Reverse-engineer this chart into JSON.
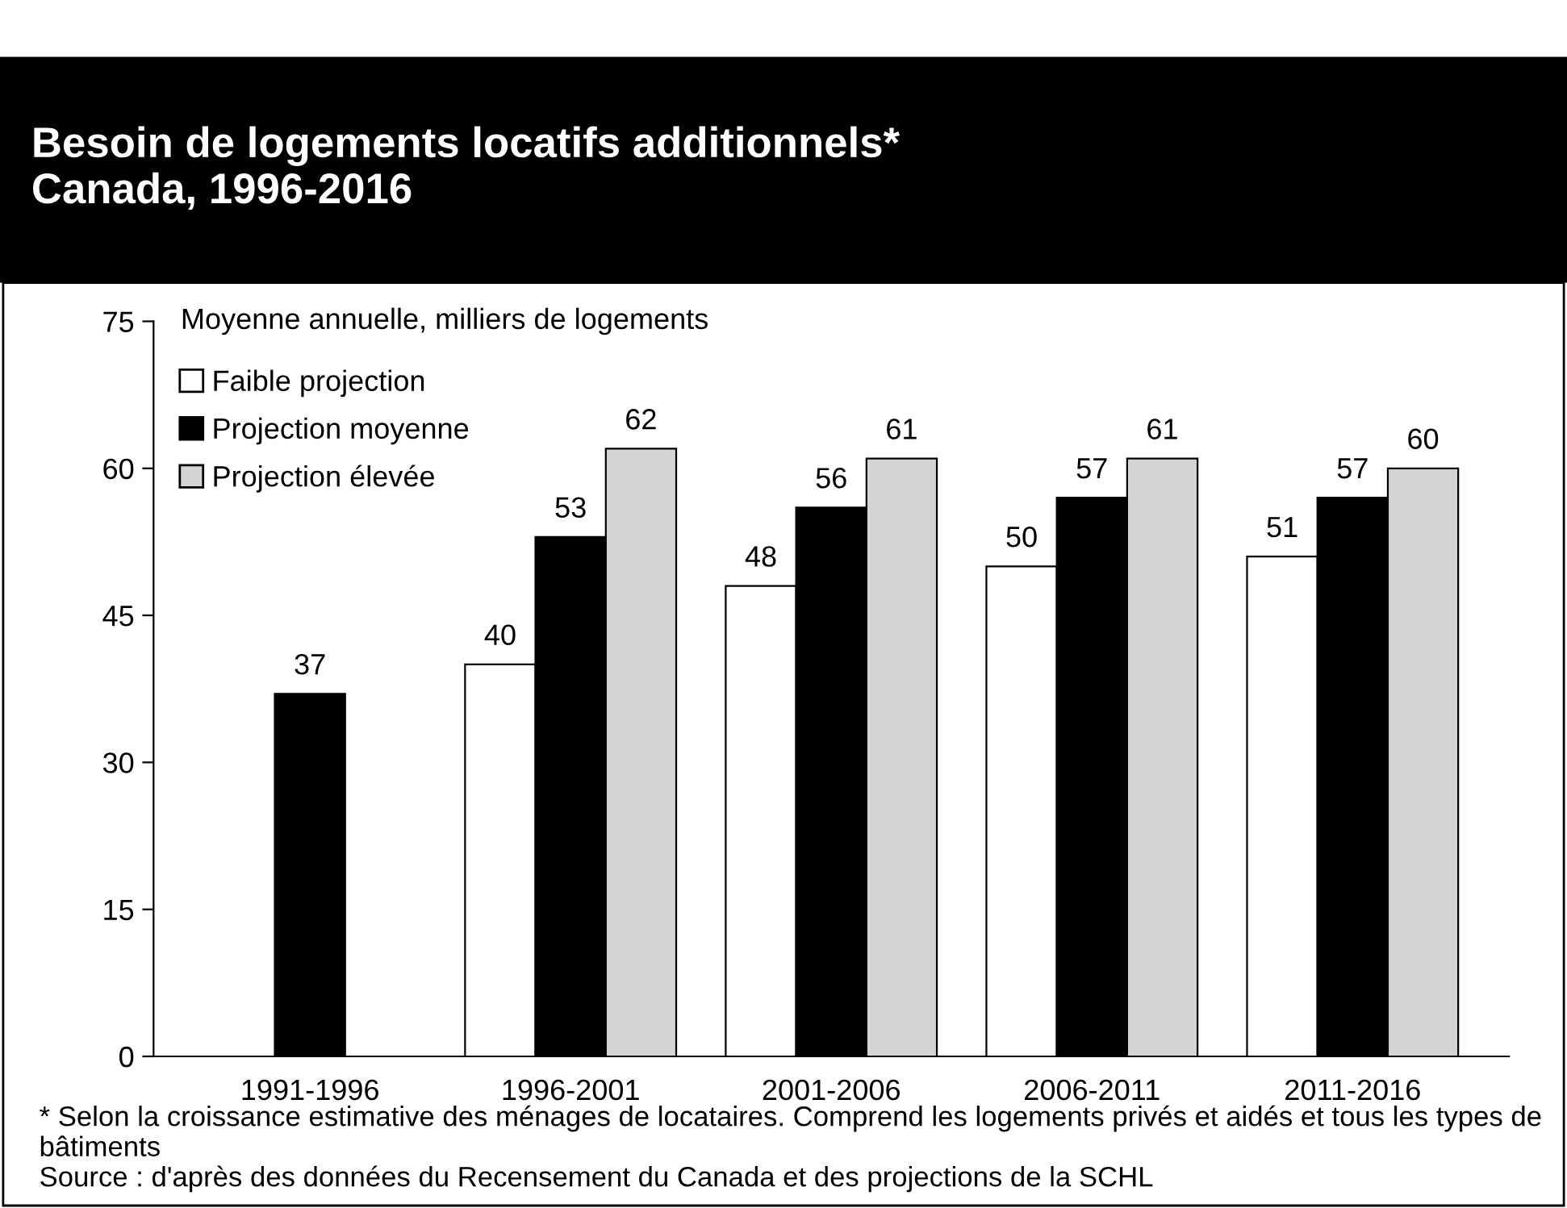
{
  "chart_data": {
    "type": "bar",
    "title": "Besoin de logements locatifs additionnels*\nCanada, 1996-2016",
    "ylabel": "Moyenne annuelle, milliers de logements",
    "categories": [
      "1991-1996",
      "1996-2001",
      "2001-2006",
      "2006-2011",
      "2011-2016"
    ],
    "series": [
      {
        "name": "Faible projection",
        "color": "#ffffff",
        "values": [
          null,
          40,
          48,
          50,
          51
        ]
      },
      {
        "name": "Projection moyenne",
        "color": "#000000",
        "values": [
          37,
          53,
          56,
          57,
          57
        ]
      },
      {
        "name": "Projection élevée",
        "color": "#d4d4d4",
        "values": [
          null,
          62,
          61,
          61,
          60
        ]
      }
    ],
    "ylim": [
      0,
      75
    ],
    "yticks": [
      0,
      15,
      30,
      45,
      60,
      75
    ],
    "grid": false,
    "legend": "top left",
    "data_labels": true,
    "annotations": [
      "* Selon la croissance estimative des ménages de locataires. Comprend les logements privés et aidés et tous les types de bâtiments",
      "Source : d'après des données du Recensement du Canada et des projections de la SCHL"
    ]
  }
}
